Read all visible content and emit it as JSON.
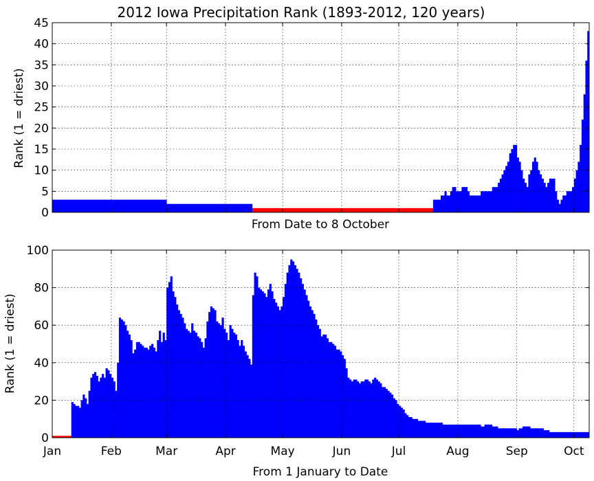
{
  "chart_data": [
    {
      "type": "bar",
      "title": "2012 Iowa Precipitation Rank (1893-2012, 120 years)",
      "xlabel": "From Date to 8 October",
      "ylabel": "Rank (1 = driest)",
      "xlim": [
        1,
        282
      ],
      "ylim": [
        0,
        45
      ],
      "yticks": [
        0,
        5,
        10,
        15,
        20,
        25,
        30,
        35,
        40,
        45
      ],
      "grid": true,
      "bar_colors": {
        "low": "#ff0000",
        "normal": "#0000ff"
      },
      "x_unit": "day of year (start date, window ends 8 October)",
      "segments": [
        {
          "x": [
            1,
            60
          ],
          "rank": 3
        },
        {
          "x": [
            61,
            105
          ],
          "rank": 2
        },
        {
          "x": [
            106,
            200
          ],
          "rank": 1
        },
        {
          "x": [
            201,
            282
          ],
          "ranks": [
            3,
            3,
            3,
            3,
            4,
            4,
            5,
            4,
            4,
            5,
            6,
            6,
            5,
            5,
            5,
            6,
            6,
            6,
            5,
            4,
            4,
            4,
            4,
            4,
            4,
            5,
            5,
            5,
            5,
            5,
            5,
            6,
            6,
            6,
            7,
            8,
            9,
            10,
            11,
            12,
            14,
            15,
            16,
            16,
            13,
            12,
            10,
            8,
            7,
            6,
            9,
            10,
            12,
            13,
            12,
            10,
            9,
            8,
            7,
            6,
            7,
            8,
            8,
            8,
            5,
            3,
            2,
            3,
            4,
            4,
            5,
            5,
            5,
            6,
            8,
            10,
            12,
            16,
            22,
            28,
            36,
            43
          ]
        }
      ]
    },
    {
      "type": "bar",
      "title": "",
      "xlabel": "From 1 January to Date",
      "ylabel": "Rank (1 = driest)",
      "xlim": [
        1,
        282
      ],
      "ylim": [
        0,
        100
      ],
      "yticks": [
        0,
        20,
        40,
        60,
        80,
        100
      ],
      "grid": true,
      "bar_colors": {
        "low": "#ff0000",
        "normal": "#0000ff"
      },
      "x_unit": "day of year (end date, window starts 1 January)",
      "months": [
        {
          "label": "Jan",
          "day": 1
        },
        {
          "label": "Feb",
          "day": 32
        },
        {
          "label": "Mar",
          "day": 61
        },
        {
          "label": "Apr",
          "day": 92
        },
        {
          "label": "May",
          "day": 122
        },
        {
          "label": "Jun",
          "day": 153
        },
        {
          "label": "Jul",
          "day": 183
        },
        {
          "label": "Aug",
          "day": 214
        },
        {
          "label": "Sep",
          "day": 245
        },
        {
          "label": "Oct",
          "day": 275
        }
      ],
      "keypoints": [
        [
          1,
          1
        ],
        [
          10,
          1
        ],
        [
          11,
          19
        ],
        [
          13,
          17
        ],
        [
          15,
          16
        ],
        [
          16,
          20
        ],
        [
          17,
          23
        ],
        [
          18,
          21
        ],
        [
          19,
          18
        ],
        [
          20,
          25
        ],
        [
          21,
          32
        ],
        [
          23,
          35
        ],
        [
          25,
          30
        ],
        [
          27,
          34
        ],
        [
          28,
          32
        ],
        [
          29,
          37
        ],
        [
          31,
          34
        ],
        [
          33,
          30
        ],
        [
          34,
          25
        ],
        [
          35,
          40
        ],
        [
          36,
          64
        ],
        [
          38,
          62
        ],
        [
          40,
          57
        ],
        [
          42,
          52
        ],
        [
          43,
          45
        ],
        [
          44,
          47
        ],
        [
          45,
          51
        ],
        [
          47,
          50
        ],
        [
          49,
          48
        ],
        [
          51,
          47
        ],
        [
          53,
          50
        ],
        [
          55,
          46
        ],
        [
          57,
          57
        ],
        [
          58,
          51
        ],
        [
          59,
          56
        ],
        [
          60,
          52
        ],
        [
          61,
          80
        ],
        [
          62,
          83
        ],
        [
          63,
          86
        ],
        [
          64,
          78
        ],
        [
          66,
          71
        ],
        [
          67,
          68
        ],
        [
          69,
          64
        ],
        [
          71,
          58
        ],
        [
          73,
          56
        ],
        [
          74,
          61
        ],
        [
          75,
          57
        ],
        [
          77,
          54
        ],
        [
          79,
          51
        ],
        [
          80,
          48
        ],
        [
          81,
          53
        ],
        [
          82,
          62
        ],
        [
          83,
          67
        ],
        [
          84,
          70
        ],
        [
          86,
          68
        ],
        [
          87,
          62
        ],
        [
          89,
          60
        ],
        [
          90,
          64
        ],
        [
          91,
          58
        ],
        [
          92,
          56
        ],
        [
          93,
          52
        ],
        [
          94,
          60
        ],
        [
          96,
          56
        ],
        [
          97,
          55
        ],
        [
          98,
          52
        ],
        [
          99,
          49
        ],
        [
          100,
          52
        ],
        [
          102,
          46
        ],
        [
          104,
          42
        ],
        [
          105,
          39
        ],
        [
          106,
          76
        ],
        [
          107,
          88
        ],
        [
          108,
          86
        ],
        [
          109,
          80
        ],
        [
          111,
          78
        ],
        [
          113,
          75
        ],
        [
          115,
          82
        ],
        [
          116,
          78
        ],
        [
          117,
          74
        ],
        [
          118,
          72
        ],
        [
          120,
          68
        ],
        [
          121,
          70
        ],
        [
          122,
          75
        ],
        [
          123,
          82
        ],
        [
          124,
          88
        ],
        [
          125,
          92
        ],
        [
          126,
          95
        ],
        [
          128,
          92
        ],
        [
          130,
          88
        ],
        [
          132,
          82
        ],
        [
          134,
          76
        ],
        [
          136,
          70
        ],
        [
          138,
          66
        ],
        [
          140,
          60
        ],
        [
          141,
          58
        ],
        [
          142,
          54
        ],
        [
          144,
          55
        ],
        [
          146,
          51
        ],
        [
          148,
          50
        ],
        [
          150,
          47
        ],
        [
          152,
          46
        ],
        [
          154,
          42
        ],
        [
          155,
          37
        ],
        [
          156,
          32
        ],
        [
          158,
          30
        ],
        [
          160,
          31
        ],
        [
          162,
          29
        ],
        [
          164,
          30
        ],
        [
          166,
          31
        ],
        [
          168,
          29
        ],
        [
          170,
          32
        ],
        [
          172,
          30
        ],
        [
          174,
          27
        ],
        [
          176,
          26
        ],
        [
          178,
          24
        ],
        [
          180,
          21
        ],
        [
          182,
          18
        ],
        [
          184,
          16
        ],
        [
          186,
          13
        ],
        [
          188,
          11
        ],
        [
          190,
          10
        ],
        [
          194,
          9
        ],
        [
          198,
          8
        ],
        [
          205,
          8
        ],
        [
          206,
          7
        ],
        [
          220,
          7
        ],
        [
          225,
          7
        ],
        [
          226,
          6
        ],
        [
          230,
          7
        ],
        [
          232,
          6
        ],
        [
          236,
          5
        ],
        [
          240,
          5
        ],
        [
          244,
          5
        ],
        [
          245,
          4
        ],
        [
          248,
          6
        ],
        [
          250,
          6
        ],
        [
          252,
          5
        ],
        [
          256,
          5
        ],
        [
          260,
          4
        ],
        [
          263,
          3
        ],
        [
          282,
          3
        ]
      ]
    }
  ]
}
